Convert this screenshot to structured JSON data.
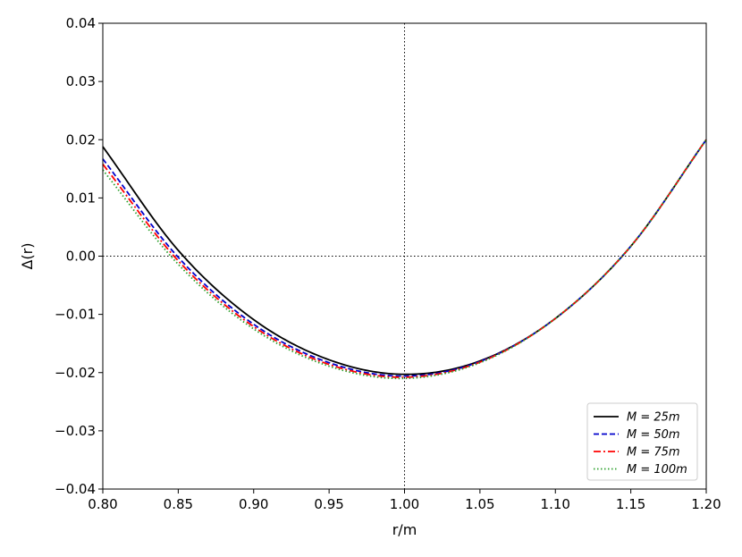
{
  "chart_data": {
    "type": "line",
    "title": "",
    "xlabel": "r/m",
    "ylabel": "Δ(r)",
    "xlim": [
      0.8,
      1.2
    ],
    "ylim": [
      -0.04,
      0.04
    ],
    "x_ticks": [
      "0.80",
      "0.85",
      "0.90",
      "0.95",
      "1.00",
      "1.05",
      "1.10",
      "1.15",
      "1.20"
    ],
    "y_ticks": [
      "−0.04",
      "−0.03",
      "−0.02",
      "−0.01",
      "0.00",
      "0.01",
      "0.02",
      "0.03",
      "0.04"
    ],
    "reference_lines": {
      "x": 1.0,
      "y": 0.0,
      "style": "dotted",
      "color": "#000000"
    },
    "grid": false,
    "legend_position": "bottom-right",
    "x": [
      0.8,
      0.85,
      0.9,
      0.95,
      1.0,
      1.05,
      1.1,
      1.15,
      1.2
    ],
    "series": [
      {
        "name": "M = 25m",
        "color": "#000000",
        "dash": "solid",
        "values": [
          0.0188,
          0.001,
          -0.0109,
          -0.0178,
          -0.0203,
          -0.018,
          -0.0107,
          0.0017,
          0.02
        ]
      },
      {
        "name": "M = 50m",
        "color": "#0000cc",
        "dash": "dashed",
        "values": [
          0.0167,
          -0.0002,
          -0.0117,
          -0.0183,
          -0.0206,
          -0.0181,
          -0.0107,
          0.0017,
          0.02
        ]
      },
      {
        "name": "M = 75m",
        "color": "#ff0000",
        "dash": "dashdot",
        "values": [
          0.0158,
          -0.0008,
          -0.0121,
          -0.0186,
          -0.0208,
          -0.0182,
          -0.0107,
          0.0017,
          0.02
        ]
      },
      {
        "name": "M = 100m",
        "color": "#2ca02c",
        "dash": "dotted",
        "values": [
          0.0148,
          -0.0014,
          -0.0125,
          -0.0189,
          -0.021,
          -0.0183,
          -0.0107,
          0.0017,
          0.02
        ]
      }
    ]
  }
}
